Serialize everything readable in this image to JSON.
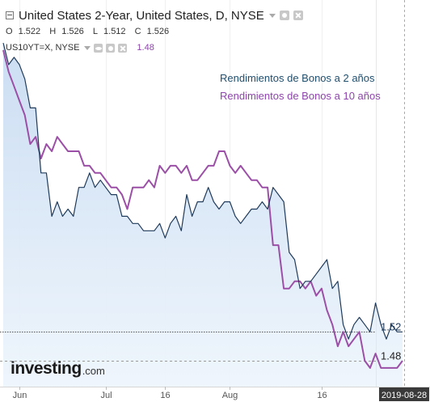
{
  "header": {
    "title": "United States 2-Year, United States, D, NYSE",
    "ohlc": [
      {
        "label": "O",
        "value": "1.522"
      },
      {
        "label": "H",
        "value": "1.526"
      },
      {
        "label": "L",
        "value": "1.512"
      },
      {
        "label": "C",
        "value": "1.526"
      }
    ],
    "overlay_symbol": "US10YT=X, NYSE",
    "overlay_value": "1.48"
  },
  "brand": {
    "word": "investing",
    "suffix": ".com"
  },
  "colors": {
    "series_2y": "#1f3a5a",
    "series_10y": "#9b4fa6",
    "area_fill": "#dbe9f8",
    "legend_2y": "#1f4e6e",
    "legend_10y": "#8e44ad",
    "last_date_bg": "#3a3a3a"
  },
  "chart_data": {
    "type": "line",
    "x_tick_labels": [
      "Jun",
      "Jul",
      "16",
      "Aug",
      "16"
    ],
    "last_date_label": "2019-08-28",
    "y_axis_labels": [
      "1.52",
      "1.48"
    ],
    "legend": {
      "placement": "top-right"
    },
    "series": [
      {
        "name": "Rendimientos de Bonos a 2 años",
        "last_value_label": "1.52",
        "values": [
          1.92,
          1.89,
          1.9,
          1.89,
          1.87,
          1.83,
          1.83,
          1.74,
          1.74,
          1.68,
          1.7,
          1.68,
          1.69,
          1.68,
          1.72,
          1.72,
          1.74,
          1.72,
          1.73,
          1.72,
          1.71,
          1.71,
          1.68,
          1.68,
          1.67,
          1.67,
          1.66,
          1.66,
          1.66,
          1.67,
          1.65,
          1.67,
          1.68,
          1.66,
          1.71,
          1.68,
          1.7,
          1.7,
          1.72,
          1.7,
          1.69,
          1.7,
          1.7,
          1.68,
          1.67,
          1.68,
          1.69,
          1.69,
          1.7,
          1.69,
          1.72,
          1.71,
          1.7,
          1.63,
          1.62,
          1.58,
          1.59,
          1.59,
          1.6,
          1.61,
          1.62,
          1.58,
          1.59,
          1.53,
          1.51,
          1.53,
          1.54,
          1.53,
          1.52,
          1.56,
          1.53,
          1.51,
          1.53,
          1.52,
          1.52
        ]
      },
      {
        "name": "Rendimientos de Bonos a 10 años",
        "last_value_label": "1.48",
        "values": [
          1.91,
          1.88,
          1.86,
          1.84,
          1.82,
          1.78,
          1.79,
          1.76,
          1.78,
          1.77,
          1.79,
          1.78,
          1.77,
          1.77,
          1.77,
          1.75,
          1.75,
          1.74,
          1.74,
          1.73,
          1.72,
          1.72,
          1.71,
          1.69,
          1.72,
          1.72,
          1.72,
          1.73,
          1.72,
          1.75,
          1.74,
          1.75,
          1.75,
          1.74,
          1.75,
          1.73,
          1.73,
          1.74,
          1.75,
          1.75,
          1.77,
          1.77,
          1.75,
          1.74,
          1.75,
          1.74,
          1.73,
          1.73,
          1.72,
          1.72,
          1.64,
          1.64,
          1.58,
          1.58,
          1.59,
          1.59,
          1.58,
          1.59,
          1.57,
          1.58,
          1.55,
          1.53,
          1.5,
          1.52,
          1.5,
          1.51,
          1.52,
          1.48,
          1.47,
          1.49,
          1.47,
          1.47,
          1.47,
          1.47,
          1.48
        ]
      }
    ]
  }
}
